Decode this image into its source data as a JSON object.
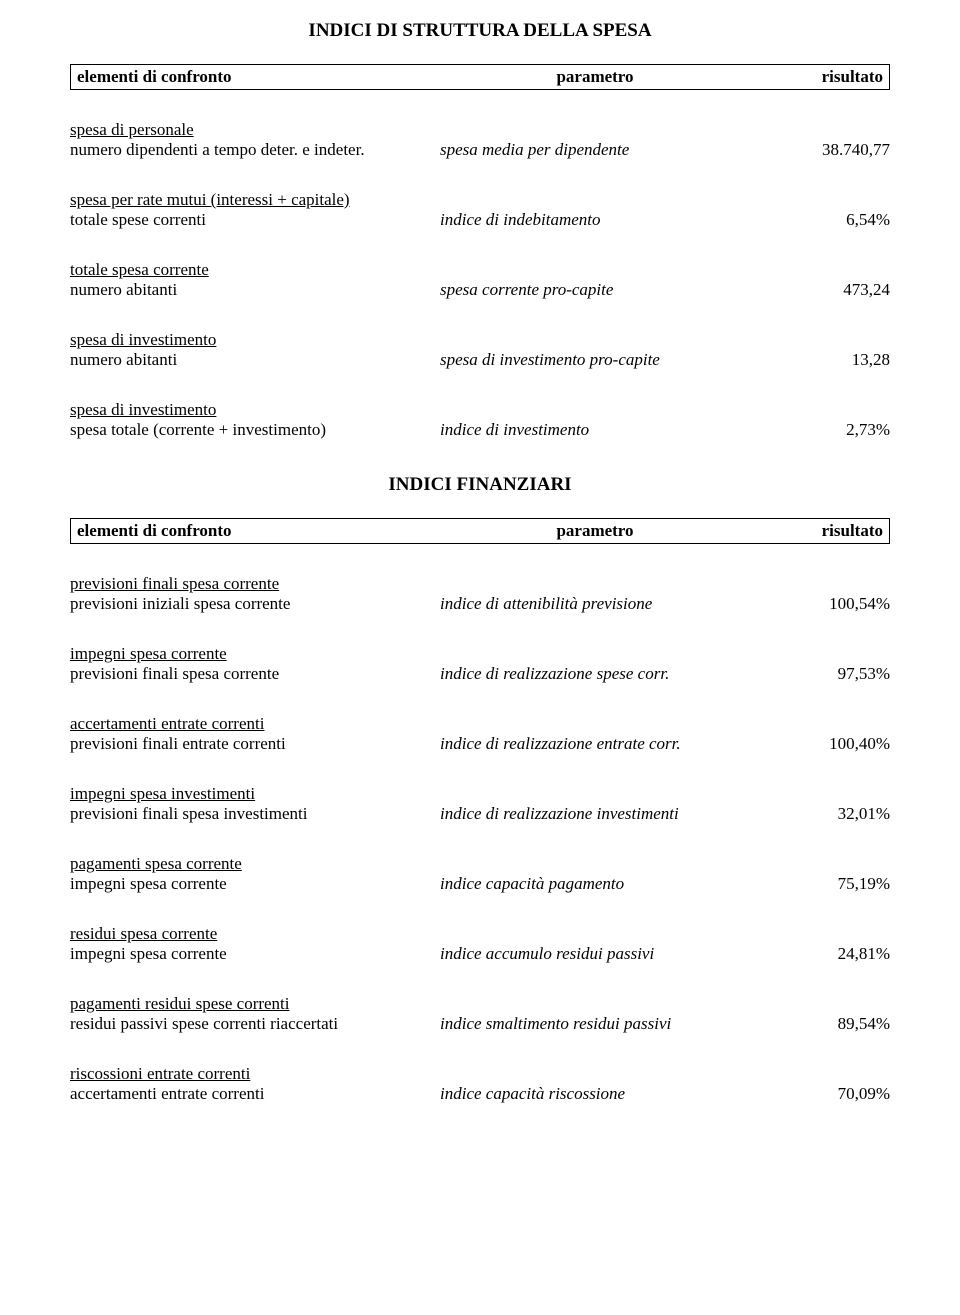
{
  "title1": "INDICI DI STRUTTURA DELLA SPESA",
  "title2": "INDICI FINANZIARI",
  "header": {
    "col1": "elementi di confronto",
    "col2": "parametro",
    "col3": "risultato"
  },
  "section1": [
    {
      "numLabel": "spesa di personale",
      "denLabel": "numero dipendenti a tempo deter. e indeter.",
      "param": "spesa media per dipendente",
      "value": "38.740,77"
    },
    {
      "numLabel": "spesa per rate mutui (interessi + capitale)",
      "denLabel": "totale spese correnti",
      "param": "indice di indebitamento",
      "value": "6,54%"
    },
    {
      "numLabel": "totale spesa corrente",
      "denLabel": "numero abitanti",
      "param": "spesa corrente pro-capite",
      "value": "473,24"
    },
    {
      "numLabel": "spesa di investimento",
      "denLabel": "numero abitanti",
      "param": "spesa di investimento pro-capite",
      "value": "13,28"
    },
    {
      "numLabel": "spesa di investimento",
      "denLabel": "spesa totale (corrente + investimento)",
      "param": "indice di investimento",
      "value": "2,73%"
    }
  ],
  "section2": [
    {
      "numLabel": "previsioni finali spesa corrente",
      "denLabel": "previsioni iniziali spesa corrente",
      "param": "indice di attenibilità previsione",
      "value": "100,54%"
    },
    {
      "numLabel": "impegni spesa corrente",
      "denLabel": "previsioni finali spesa corrente",
      "param": "indice di realizzazione spese corr.",
      "value": "97,53%"
    },
    {
      "numLabel": "accertamenti entrate correnti",
      "denLabel": "previsioni finali entrate correnti",
      "param": "indice di realizzazione entrate corr.",
      "value": "100,40%"
    },
    {
      "numLabel": "impegni spesa investimenti",
      "denLabel": "previsioni finali spesa investimenti",
      "param": "indice di realizzazione investimenti",
      "value": "32,01%"
    },
    {
      "numLabel": "pagamenti spesa corrente",
      "denLabel": "impegni spesa corrente",
      "param": "indice capacità pagamento",
      "value": "75,19%"
    },
    {
      "numLabel": "residui spesa corrente",
      "denLabel": "impegni spesa corrente",
      "param": "indice accumulo residui passivi",
      "value": "24,81%"
    },
    {
      "numLabel": "pagamenti residui spese correnti",
      "denLabel": "residui passivi spese correnti riaccertati",
      "param": "indice smaltimento residui passivi",
      "value": "89,54%"
    },
    {
      "numLabel": "riscossioni entrate correnti",
      "denLabel": "accertamenti entrate correnti",
      "param": "indice capacità riscossione",
      "value": "70,09%"
    }
  ]
}
